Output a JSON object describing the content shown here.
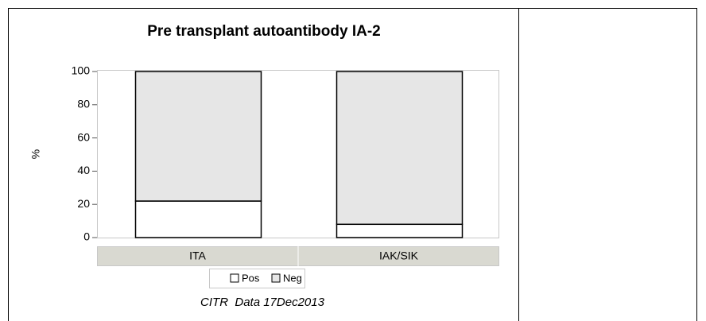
{
  "chart_data": {
    "type": "stacked_bar",
    "title": "Pre transplant autoantibody IA-2",
    "ylabel": "%",
    "categories": [
      "ITA",
      "IAK/SIK"
    ],
    "series": [
      {
        "name": "Pos",
        "color": "#ffffff",
        "values": [
          22,
          8
        ]
      },
      {
        "name": "Neg",
        "color": "#e6e6e6",
        "values": [
          78,
          92
        ]
      }
    ],
    "ylim": [
      0,
      100
    ],
    "yticks": [
      0,
      20,
      40,
      60,
      80,
      100
    ],
    "footnote": "CITR  Data 17Dec2013"
  }
}
